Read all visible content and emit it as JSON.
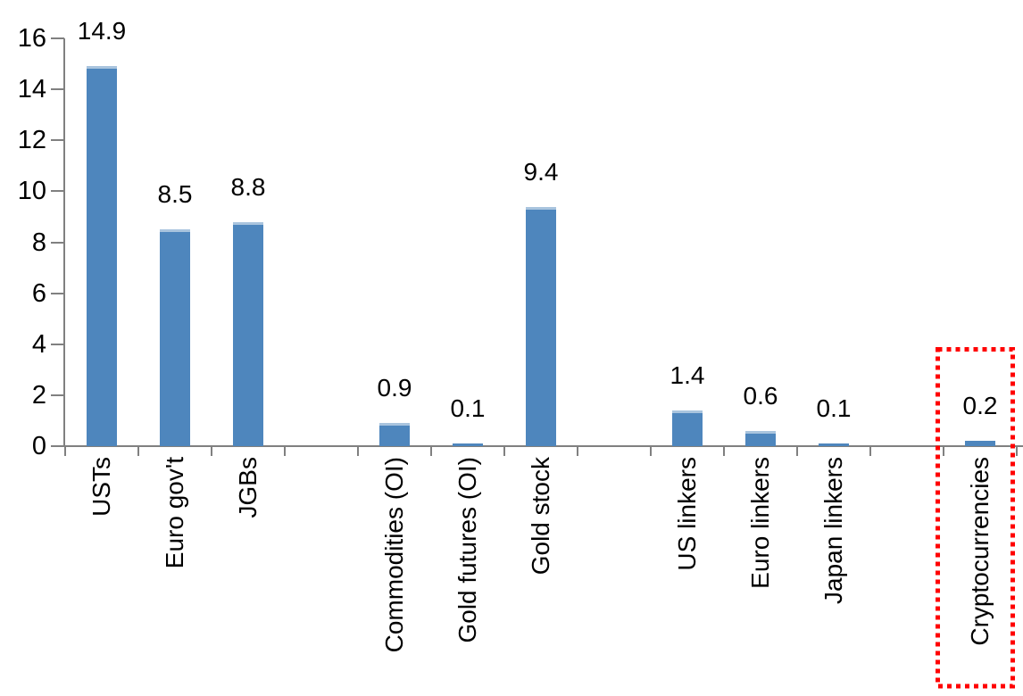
{
  "chart_data": {
    "type": "bar",
    "title": "",
    "xlabel": "",
    "ylabel": "",
    "categories": [
      "USTs",
      "Euro gov't",
      "JGBs",
      "",
      "Commodities (OI)",
      "Gold futures (OI)",
      "Gold stock",
      "",
      "US linkers",
      "Euro linkers",
      "Japan linkers",
      "",
      "Cryptocurrencies"
    ],
    "values": [
      14.9,
      8.5,
      8.8,
      null,
      0.9,
      0.1,
      9.4,
      null,
      1.4,
      0.6,
      0.1,
      null,
      0.2
    ],
    "data_labels": [
      "14.9",
      "8.5",
      "8.8",
      null,
      "0.9",
      "0.1",
      "9.4",
      null,
      "1.4",
      "0.6",
      "0.1",
      null,
      "0.2"
    ],
    "ylim": [
      0,
      16
    ],
    "y_ticks": [
      0,
      2,
      4,
      6,
      8,
      10,
      12,
      14,
      16
    ],
    "grid": false,
    "legend": null,
    "bar_color": "#4E86BD",
    "bar_top_edge_color": "#A9C4DE",
    "axis_color": "#808080",
    "label_color": "#000000",
    "highlight": {
      "category": "Cryptocurrencies",
      "box_color": "#FF0000",
      "box_style": "dotted"
    }
  }
}
